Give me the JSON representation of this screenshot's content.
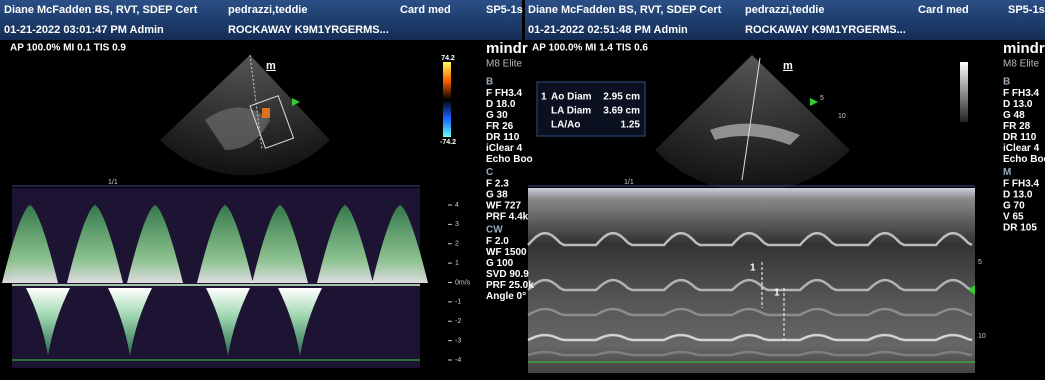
{
  "left": {
    "header": {
      "operator": "Diane McFadden BS, RVT, SDEP Cert",
      "patient": "pedrazzi,teddie",
      "preset": "Card med",
      "probe": "SP5-1s",
      "datetime": "01-21-2022 03:01:47 PM  Admin",
      "institution": "ROCKAWAY K9M1YRGERMS..."
    },
    "status": "AP 100.0%  MI 0.1  TIS 0.9",
    "colorbar": {
      "max": "74.2",
      "min": "-74.2"
    },
    "brand": {
      "logo": "mindr",
      "model": "M8 Elite"
    },
    "probe_mark": "m",
    "params": [
      {
        "heading": "B",
        "items": [
          "F FH3.4",
          "D 18.0",
          "G 30",
          "FR 26",
          "DR 110",
          "iClear 4",
          "Echo Boo"
        ]
      },
      {
        "heading": "C",
        "items": [
          "F 2.3",
          "G 38",
          "WF 727",
          "PRF 4.4k"
        ]
      },
      {
        "heading": "CW",
        "items": [
          "F 2.0",
          "WF 1500",
          "G 100",
          "SVD 90.9",
          "PRF 25.0k",
          "Angle 0°"
        ]
      }
    ],
    "doppler_scale": [
      "4",
      "3",
      "2",
      "1",
      "0m/s",
      "-1",
      "-2",
      "-3",
      "-4"
    ],
    "timeline_label": "1/1"
  },
  "right": {
    "header": {
      "operator": "Diane McFadden BS, RVT, SDEP Cert",
      "patient": "pedrazzi,teddie",
      "preset": "Card med",
      "probe": "SP5-1s",
      "datetime": "01-21-2022 02:51:48 PM  Admin",
      "institution": "ROCKAWAY K9M1YRGERMS..."
    },
    "status": "AP 100.0%  MI 1.4  TIS 0.6",
    "brand": {
      "logo": "mindr",
      "model": "M8 Elite"
    },
    "probe_mark": "m",
    "measurements": {
      "index": "1",
      "rows": [
        {
          "label": "Ao Diam",
          "value": "2.95 cm"
        },
        {
          "label": "LA Diam",
          "value": "3.69 cm"
        },
        {
          "label": "LA/Ao",
          "value": "1.25"
        }
      ]
    },
    "params": [
      {
        "heading": "B",
        "items": [
          "F FH3.4",
          "D 13.0",
          "G 48",
          "FR 28",
          "DR 110",
          "iClear 4",
          "Echo Boo"
        ]
      },
      {
        "heading": "M",
        "items": [
          "F FH3.4",
          "D 13.0",
          "G 70",
          "V 65",
          "DR 105"
        ]
      }
    ],
    "sector_depth": [
      "5",
      "10"
    ],
    "mmode_depth": [
      "5",
      "10"
    ],
    "calipers": [
      "1",
      "1"
    ],
    "timeline_label": "1/1"
  }
}
